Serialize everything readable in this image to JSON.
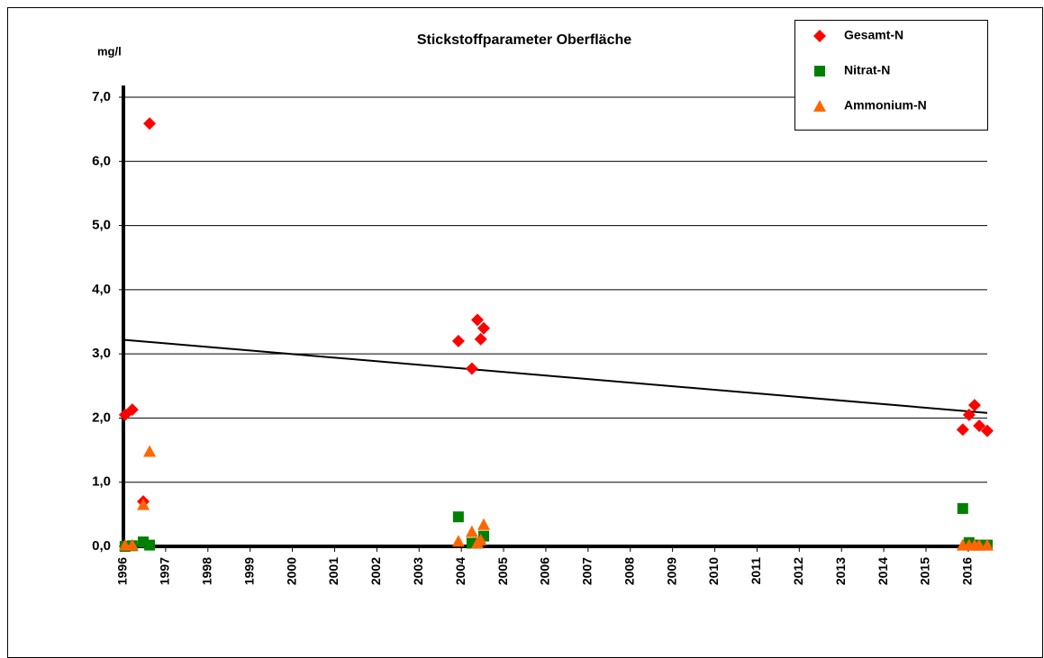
{
  "chart_data": {
    "type": "scatter",
    "title": "Stickstoffparameter Oberfläche",
    "y_label": "mg/l",
    "xlim": [
      1996,
      2016.45
    ],
    "xticks": [
      1996,
      1997,
      1998,
      1999,
      2000,
      2001,
      2002,
      2003,
      2004,
      2005,
      2006,
      2007,
      2008,
      2009,
      2010,
      2011,
      2012,
      2013,
      2014,
      2015,
      2016
    ],
    "ylim": [
      0,
      7
    ],
    "yticks": [
      {
        "value": 0,
        "label": "0,0"
      },
      {
        "value": 1,
        "label": "1,0"
      },
      {
        "value": 2,
        "label": "2,0"
      },
      {
        "value": 3,
        "label": "3,0"
      },
      {
        "value": 4,
        "label": "4,0"
      },
      {
        "value": 5,
        "label": "5,0"
      },
      {
        "value": 6,
        "label": "6,0"
      },
      {
        "value": 7,
        "label": "7,0"
      }
    ],
    "grid": true,
    "legend": "top-right",
    "series": [
      {
        "name": "Gesamt-N",
        "color": "#ff0000",
        "marker": "diamond",
        "x": [
          1996.04,
          1996.21,
          1996.47,
          1996.62,
          2003.93,
          2004.25,
          2004.38,
          2004.53,
          2004.46,
          2015.87,
          2016.02,
          2016.15,
          2016.26,
          2016.45
        ],
        "values": [
          2.05,
          2.13,
          0.7,
          6.59,
          3.2,
          2.77,
          3.53,
          3.4,
          3.23,
          1.82,
          2.05,
          2.2,
          1.88,
          1.8
        ]
      },
      {
        "name": "Nitrat-N",
        "color": "#008000",
        "marker": "square",
        "x": [
          1996.04,
          1996.21,
          1996.47,
          1996.62,
          2003.93,
          2004.25,
          2004.38,
          2004.53,
          2015.87,
          2016.02,
          2016.15,
          2016.26,
          2016.45
        ],
        "values": [
          0.0,
          0.01,
          0.07,
          0.02,
          0.46,
          0.05,
          0.05,
          0.16,
          0.59,
          0.06,
          0.02,
          0.02,
          0.02
        ]
      },
      {
        "name": "Ammonium-N",
        "color": "#ff6600",
        "marker": "triangle",
        "x": [
          1996.04,
          1996.21,
          1996.47,
          1996.62,
          2003.93,
          2004.25,
          2004.38,
          2004.46,
          2004.53,
          2015.87,
          2016.02,
          2016.15,
          2016.26,
          2016.45
        ],
        "values": [
          0.02,
          0.02,
          0.65,
          1.48,
          0.08,
          0.23,
          0.05,
          0.1,
          0.34,
          0.02,
          0.02,
          0.02,
          0.02,
          0.02
        ]
      }
    ],
    "trendline": {
      "color": "#000000",
      "x": [
        1996,
        2016.45
      ],
      "values": [
        3.22,
        2.08
      ]
    }
  }
}
